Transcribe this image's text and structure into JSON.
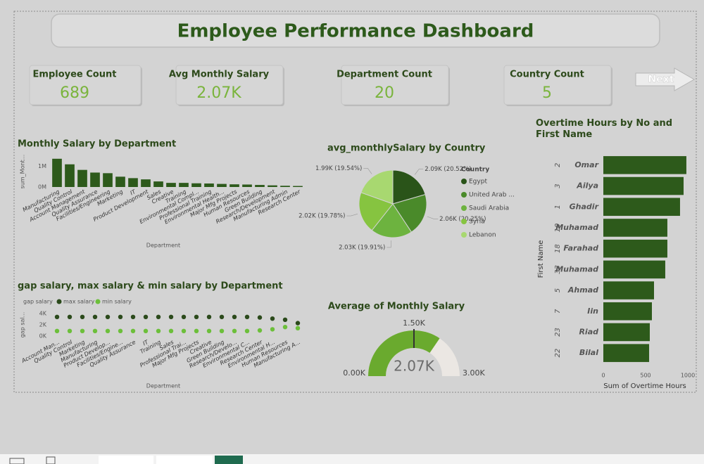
{
  "header": {
    "title": "Employee Performance Dashboard"
  },
  "navigation": {
    "next": "Next"
  },
  "kpis": [
    {
      "label": "Employee Count",
      "value": "689"
    },
    {
      "label": "Avg Monthly Salary",
      "value": "2.07K"
    },
    {
      "label": "Department Count",
      "value": "20"
    },
    {
      "label": "Country Count",
      "value": "5"
    }
  ],
  "chart_data": [
    {
      "type": "bar",
      "title": "Monthly Salary by Department",
      "x_label": "Department",
      "y_label": "sum_Mont...",
      "categories": [
        "Manufacturing",
        "Quality Control",
        "Account Management",
        "Quality Assurance",
        "Facilities/Engineering",
        "Marketing",
        "IT",
        "Product Development",
        "Sales",
        "Creative",
        "Training",
        "Environmental Compl...",
        "Professional Training",
        "Environmental Health...",
        "Major Mfg Projects",
        "Human Resources",
        "Green Building",
        "Research/Development",
        "Manufacturing Admin",
        "Research Center"
      ],
      "values": [
        1370000,
        1100000,
        830000,
        700000,
        670000,
        500000,
        430000,
        370000,
        270000,
        200000,
        200000,
        180000,
        170000,
        150000,
        130000,
        120000,
        100000,
        80000,
        60000,
        50000
      ],
      "color": "#2d5a1b",
      "ylim": [
        0,
        1500000
      ],
      "yticks": [
        {
          "value": 0,
          "label": "0M"
        },
        {
          "value": 1000000,
          "label": "1M"
        }
      ]
    },
    {
      "type": "dot",
      "title": "gap salary, max salary & min salary by Department",
      "legend_title": "gap salary",
      "x_label": "Department",
      "y_label": "gap sal...",
      "categories": [
        "Account Man...",
        "Quality Control",
        "Marketing",
        "Manufacturing",
        "Product Develop...",
        "Facilities/Engine...",
        "Quality Assurance",
        "IT",
        "Training",
        "Sales",
        "Professional Trai...",
        "Major Mfg Projects",
        "Creative",
        "Green Building",
        "Research/Develo...",
        "Environmental C...",
        "Research Center",
        "Environmental H...",
        "Human Resources",
        "Manufacturing A..."
      ],
      "series": [
        {
          "name": "max salary",
          "color": "#2b4a1b",
          "values": [
            3400,
            3400,
            3400,
            3400,
            3400,
            3400,
            3400,
            3400,
            3400,
            3400,
            3400,
            3400,
            3400,
            3400,
            3400,
            3400,
            3300,
            3100,
            2900,
            2300
          ]
        },
        {
          "name": "min salary",
          "color": "#6cbf3a",
          "values": [
            900,
            900,
            900,
            900,
            900,
            900,
            900,
            900,
            900,
            900,
            900,
            900,
            900,
            900,
            900,
            900,
            1000,
            1200,
            1600,
            1400
          ]
        }
      ],
      "ylim": [
        0,
        4000
      ],
      "yticks": [
        {
          "value": 0,
          "label": "0K"
        },
        {
          "value": 2000,
          "label": "2K"
        },
        {
          "value": 4000,
          "label": "4K"
        }
      ]
    },
    {
      "type": "pie",
      "title": "avg_monthlySalary by Country",
      "legend_title": "Country",
      "categories": [
        "Egypt",
        "United Arab ...",
        "Saudi Arabia",
        "Syria",
        "Lebanon"
      ],
      "values": [
        2090,
        2060,
        2030,
        2020,
        1990
      ],
      "value_labels": [
        "2.09K (20.52%)",
        "2.06K (20.25%)",
        "2.03K (19.91%)",
        "2.02K (19.78%)",
        "1.99K (19.54%)"
      ],
      "colors": [
        "#2a5419",
        "#4a8a2a",
        "#6db33f",
        "#86c440",
        "#a8d870"
      ]
    },
    {
      "type": "gauge",
      "title": "Average of Monthly Salary",
      "value": 2070,
      "value_label": "2.07K",
      "ylim": [
        0,
        3000
      ],
      "yticks": [
        {
          "value": 0,
          "label": "0.00K"
        },
        {
          "value": 3000,
          "label": "3.00K"
        }
      ],
      "target": {
        "value": 1500,
        "label": "1.50K"
      },
      "color": "#6aaa2e",
      "track_color": "#ebe7e3"
    },
    {
      "type": "bar",
      "orientation": "horizontal",
      "title": "Overtime Hours by No and First Name",
      "x_label": "Sum of Overtime Hours",
      "y_label": "First Name",
      "category_numbers": [
        "2",
        "3",
        "1",
        "10",
        "18",
        "33",
        "5",
        "7",
        "23",
        "22"
      ],
      "categories": [
        "Omar",
        "Ailya",
        "Ghadir",
        "Muhamad",
        "Farahad",
        "Muhamad",
        "Ahmad",
        "Iin",
        "Riad",
        "Bilal"
      ],
      "values": [
        983,
        950,
        908,
        758,
        758,
        733,
        600,
        575,
        550,
        542
      ],
      "color": "#2d5a1b",
      "xlim": [
        0,
        1000
      ],
      "xticks": [
        0,
        500,
        1000
      ]
    }
  ]
}
